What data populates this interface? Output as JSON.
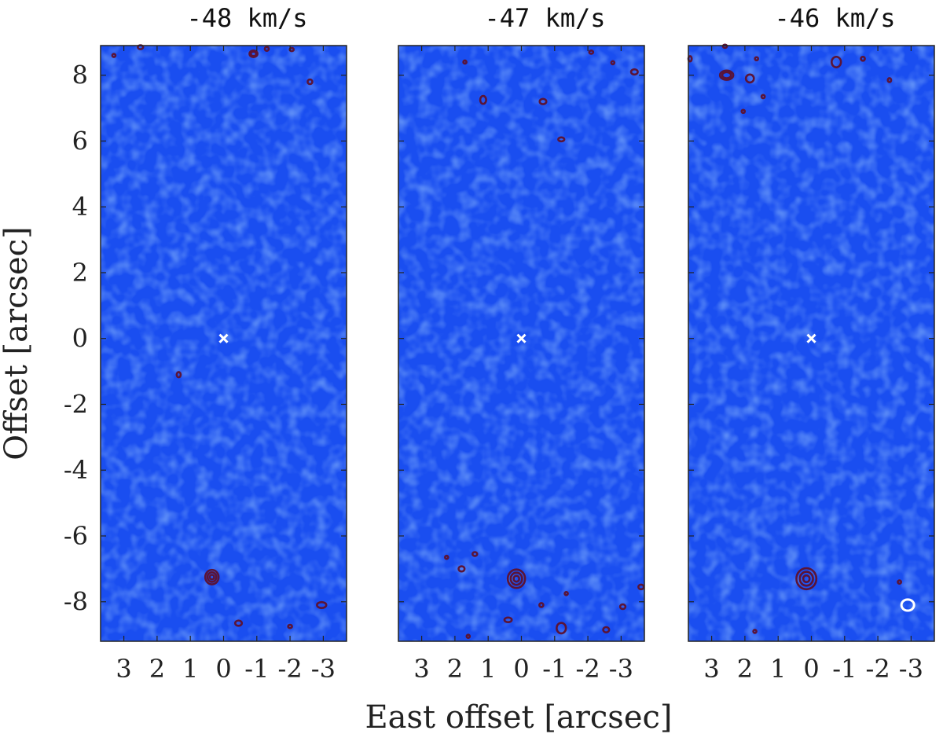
{
  "chart_data": {
    "type": "contour",
    "panel_count": 3,
    "xlabel": "East offset [arcsec]",
    "ylabel": "Offset [arcsec]",
    "xlim": [
      3.7,
      -3.7
    ],
    "ylim": [
      -9.2,
      8.9
    ],
    "xticks": [
      3,
      2,
      1,
      0,
      -1,
      -2,
      -3
    ],
    "xtick_labels": [
      "3",
      "2",
      "1",
      "0",
      "-1",
      "-2",
      "-3"
    ],
    "yticks": [
      8,
      6,
      4,
      2,
      0,
      -2,
      -4,
      -6,
      -8
    ],
    "ytick_labels": [
      "8",
      "6",
      "4",
      "2",
      "0",
      "-2",
      "-4",
      "-6",
      "-8"
    ],
    "colors": {
      "background_map": "#1a4ef0",
      "map_mottle_light": "#3d72f8",
      "map_mottle_dark": "#1239d8",
      "contour": "#5a1438",
      "marker": "#ffffff",
      "beam": "#ffffff"
    },
    "panels": [
      {
        "title": "-48 km/s",
        "marker": [
          0,
          0
        ],
        "contours": [
          {
            "x": 0.35,
            "y": -7.25,
            "rx": 0.2,
            "ry": 0.22,
            "levels": 3
          },
          {
            "x": 1.35,
            "y": -1.1,
            "rx": 0.06,
            "ry": 0.08,
            "levels": 1
          },
          {
            "x": 2.5,
            "y": 8.85,
            "rx": 0.08,
            "ry": 0.06,
            "levels": 1
          },
          {
            "x": -0.9,
            "y": 8.65,
            "rx": 0.12,
            "ry": 0.1,
            "levels": 2
          },
          {
            "x": -1.3,
            "y": 8.8,
            "rx": 0.06,
            "ry": 0.06,
            "levels": 1
          },
          {
            "x": -2.05,
            "y": 8.78,
            "rx": 0.06,
            "ry": 0.05,
            "levels": 1
          },
          {
            "x": -2.6,
            "y": 7.8,
            "rx": 0.07,
            "ry": 0.07,
            "levels": 1
          },
          {
            "x": 3.3,
            "y": 8.6,
            "rx": 0.03,
            "ry": 0.03,
            "levels": 1
          },
          {
            "x": -0.45,
            "y": -8.65,
            "rx": 0.1,
            "ry": 0.08,
            "levels": 1
          },
          {
            "x": -2.0,
            "y": -8.75,
            "rx": 0.06,
            "ry": 0.05,
            "levels": 1
          },
          {
            "x": -2.95,
            "y": -8.1,
            "rx": 0.14,
            "ry": 0.09,
            "levels": 1
          }
        ]
      },
      {
        "title": "-47 km/s",
        "marker": [
          0,
          0
        ],
        "contours": [
          {
            "x": 0.15,
            "y": -7.3,
            "rx": 0.26,
            "ry": 0.28,
            "levels": 3
          },
          {
            "x": 1.15,
            "y": 7.25,
            "rx": 0.09,
            "ry": 0.12,
            "levels": 1
          },
          {
            "x": -0.65,
            "y": 7.2,
            "rx": 0.1,
            "ry": 0.08,
            "levels": 1
          },
          {
            "x": -1.2,
            "y": 6.05,
            "rx": 0.09,
            "ry": 0.06,
            "levels": 1
          },
          {
            "x": 1.7,
            "y": 8.4,
            "rx": 0.04,
            "ry": 0.04,
            "levels": 1
          },
          {
            "x": -2.1,
            "y": 8.7,
            "rx": 0.06,
            "ry": 0.05,
            "levels": 1
          },
          {
            "x": -2.75,
            "y": 8.38,
            "rx": 0.04,
            "ry": 0.04,
            "levels": 1
          },
          {
            "x": -3.4,
            "y": 8.1,
            "rx": 0.1,
            "ry": 0.08,
            "levels": 1
          },
          {
            "x": 2.25,
            "y": -6.65,
            "rx": 0.04,
            "ry": 0.04,
            "levels": 1
          },
          {
            "x": 1.4,
            "y": -6.55,
            "rx": 0.07,
            "ry": 0.06,
            "levels": 1
          },
          {
            "x": 1.8,
            "y": -7.0,
            "rx": 0.09,
            "ry": 0.08,
            "levels": 1
          },
          {
            "x": 0.4,
            "y": -8.55,
            "rx": 0.11,
            "ry": 0.07,
            "levels": 1
          },
          {
            "x": -0.6,
            "y": -8.1,
            "rx": 0.06,
            "ry": 0.06,
            "levels": 1
          },
          {
            "x": -1.2,
            "y": -8.8,
            "rx": 0.14,
            "ry": 0.16,
            "levels": 1
          },
          {
            "x": -1.35,
            "y": -7.75,
            "rx": 0.03,
            "ry": 0.03,
            "levels": 1
          },
          {
            "x": -2.55,
            "y": -8.85,
            "rx": 0.09,
            "ry": 0.08,
            "levels": 1
          },
          {
            "x": -3.05,
            "y": -8.15,
            "rx": 0.08,
            "ry": 0.07,
            "levels": 1
          },
          {
            "x": -3.6,
            "y": -7.55,
            "rx": 0.08,
            "ry": 0.07,
            "levels": 1
          },
          {
            "x": 1.6,
            "y": -9.05,
            "rx": 0.03,
            "ry": 0.03,
            "levels": 1
          }
        ]
      },
      {
        "title": "-46 km/s",
        "marker": [
          0,
          0
        ],
        "contours": [
          {
            "x": 0.15,
            "y": -7.3,
            "rx": 0.3,
            "ry": 0.32,
            "levels": 3
          },
          {
            "x": 2.6,
            "y": 8.88,
            "rx": 0.06,
            "ry": 0.05,
            "levels": 1
          },
          {
            "x": 2.55,
            "y": 8.0,
            "rx": 0.2,
            "ry": 0.14,
            "levels": 2
          },
          {
            "x": 1.85,
            "y": 7.9,
            "rx": 0.12,
            "ry": 0.12,
            "levels": 1
          },
          {
            "x": 1.65,
            "y": 8.5,
            "rx": 0.03,
            "ry": 0.03,
            "levels": 1
          },
          {
            "x": 1.45,
            "y": 7.35,
            "rx": 0.05,
            "ry": 0.05,
            "levels": 1
          },
          {
            "x": 2.05,
            "y": 6.9,
            "rx": 0.03,
            "ry": 0.03,
            "levels": 1
          },
          {
            "x": -0.75,
            "y": 8.4,
            "rx": 0.14,
            "ry": 0.16,
            "levels": 1
          },
          {
            "x": -1.55,
            "y": 8.5,
            "rx": 0.06,
            "ry": 0.06,
            "levels": 1
          },
          {
            "x": -2.35,
            "y": 7.85,
            "rx": 0.05,
            "ry": 0.06,
            "levels": 1
          },
          {
            "x": 3.65,
            "y": 8.5,
            "rx": 0.05,
            "ry": 0.08,
            "levels": 1
          },
          {
            "x": -2.65,
            "y": -7.4,
            "rx": 0.05,
            "ry": 0.05,
            "levels": 1
          },
          {
            "x": 1.7,
            "y": -8.9,
            "rx": 0.04,
            "ry": 0.03,
            "levels": 1
          }
        ],
        "beam": {
          "x": -2.9,
          "y": -8.1,
          "rx": 0.19,
          "ry": 0.17
        }
      }
    ]
  }
}
